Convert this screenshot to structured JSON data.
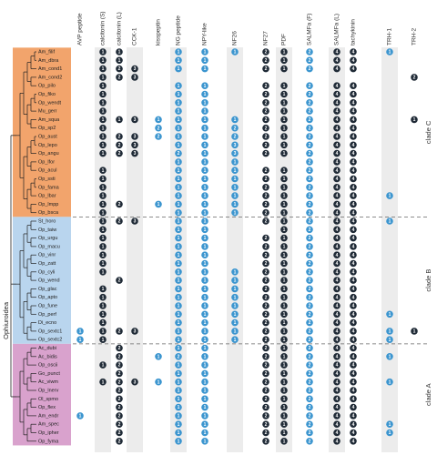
{
  "group_label": "Ophiuroidea",
  "columns": [
    {
      "label": "AVP peptide",
      "color": "#3b95cf"
    },
    {
      "label": "calcitonin (S)",
      "color": "#1f2a36"
    },
    {
      "label": "calcitonin (L)",
      "color": "#1f2a36"
    },
    {
      "label": "CCK-1",
      "color": "#1f2a36"
    },
    {
      "label": "kisspeptin",
      "color": "#3b95cf"
    },
    {
      "label": "NG peptide",
      "color": "#3b95cf"
    },
    {
      "label": "NPY-like",
      "color": "#3b95cf"
    },
    {
      "label": "NF26",
      "color": "#3b95cf"
    },
    {
      "label": "NF27",
      "color": "#1f2a36"
    },
    {
      "label": "PDF",
      "color": "#1f2a36"
    },
    {
      "label": "SALMFa (F)",
      "color": "#3b95cf"
    },
    {
      "label": "SALMFa (L)",
      "color": "#1f2a36"
    },
    {
      "label": "tachykinin",
      "color": "#1f2a36"
    },
    {
      "label": "TRH-1",
      "color": "#3b95cf"
    },
    {
      "label": "TRH-2",
      "color": "#1f2a36"
    }
  ],
  "clades": [
    {
      "label": "clade C",
      "color": "#f2a46c",
      "rows": [
        {
          "species": "Am_filif",
          "cells": [
            null,
            1,
            1,
            null,
            null,
            1,
            1,
            1,
            2,
            1,
            2,
            4,
            4,
            1,
            null
          ]
        },
        {
          "species": "Am_dbra",
          "cells": [
            null,
            1,
            1,
            null,
            null,
            1,
            1,
            null,
            2,
            1,
            2,
            4,
            4,
            null,
            null
          ]
        },
        {
          "species": "Am_cond1",
          "cells": [
            null,
            1,
            2,
            3,
            null,
            1,
            1,
            null,
            2,
            1,
            2,
            4,
            4,
            null,
            null
          ]
        },
        {
          "species": "Am_cond2",
          "cells": [
            null,
            1,
            2,
            3,
            null,
            null,
            null,
            null,
            null,
            null,
            null,
            null,
            null,
            null,
            2
          ]
        },
        {
          "species": "Op_pilo",
          "cells": [
            null,
            1,
            null,
            null,
            null,
            1,
            1,
            null,
            2,
            1,
            2,
            4,
            4,
            null,
            null
          ]
        },
        {
          "species": "Op_fiko",
          "cells": [
            null,
            1,
            null,
            null,
            null,
            1,
            1,
            null,
            2,
            1,
            2,
            4,
            4,
            null,
            null
          ]
        },
        {
          "species": "Op_wendt",
          "cells": [
            null,
            1,
            null,
            null,
            null,
            1,
            1,
            null,
            2,
            1,
            2,
            4,
            4,
            null,
            null
          ]
        },
        {
          "species": "Mu_gerr",
          "cells": [
            null,
            1,
            null,
            null,
            null,
            1,
            1,
            null,
            2,
            1,
            2,
            4,
            4,
            null,
            null
          ]
        },
        {
          "species": "Am_squa",
          "cells": [
            null,
            1,
            1,
            3,
            1,
            1,
            1,
            1,
            2,
            1,
            2,
            4,
            4,
            null,
            1
          ]
        },
        {
          "species": "Op_sp2",
          "cells": [
            null,
            1,
            null,
            null,
            2,
            1,
            1,
            2,
            2,
            1,
            2,
            4,
            4,
            null,
            null
          ]
        },
        {
          "species": "Op_aust",
          "cells": [
            null,
            1,
            2,
            3,
            2,
            1,
            1,
            2,
            2,
            1,
            2,
            4,
            4,
            null,
            null
          ]
        },
        {
          "species": "Op_lepo",
          "cells": [
            null,
            1,
            2,
            3,
            null,
            1,
            1,
            3,
            2,
            1,
            2,
            4,
            4,
            null,
            null
          ]
        },
        {
          "species": "Op_angu",
          "cells": [
            null,
            1,
            2,
            3,
            null,
            2,
            1,
            3,
            2,
            1,
            2,
            4,
            4,
            null,
            null
          ]
        },
        {
          "species": "Op_lfor",
          "cells": [
            null,
            null,
            null,
            null,
            null,
            1,
            1,
            1,
            null,
            null,
            2,
            4,
            4,
            null,
            null
          ]
        },
        {
          "species": "Op_acul",
          "cells": [
            null,
            1,
            null,
            null,
            null,
            1,
            1,
            1,
            2,
            1,
            2,
            4,
            4,
            null,
            null
          ]
        },
        {
          "species": "Op_ssti",
          "cells": [
            null,
            1,
            null,
            null,
            null,
            1,
            1,
            1,
            2,
            1,
            2,
            4,
            4,
            null,
            null
          ]
        },
        {
          "species": "Op_fama",
          "cells": [
            null,
            1,
            null,
            null,
            null,
            1,
            1,
            1,
            2,
            1,
            2,
            4,
            4,
            null,
            null
          ]
        },
        {
          "species": "Op_lbar",
          "cells": [
            null,
            1,
            null,
            null,
            null,
            1,
            1,
            1,
            2,
            1,
            2,
            4,
            4,
            1,
            null
          ]
        },
        {
          "species": "Op_lmpp",
          "cells": [
            null,
            1,
            2,
            null,
            1,
            1,
            1,
            1,
            2,
            1,
            2,
            4,
            4,
            null,
            null
          ]
        },
        {
          "species": "Op_bsca",
          "cells": [
            null,
            1,
            null,
            null,
            null,
            1,
            1,
            1,
            2,
            1,
            2,
            4,
            4,
            null,
            null
          ]
        }
      ]
    },
    {
      "label": "clade B",
      "color": "#b9d5ee",
      "rows": [
        {
          "species": "St_horo",
          "cells": [
            null,
            1,
            2,
            3,
            null,
            1,
            1,
            null,
            2,
            1,
            2,
            4,
            4,
            1,
            null
          ]
        },
        {
          "species": "Op_taiw",
          "cells": [
            null,
            1,
            null,
            null,
            null,
            1,
            1,
            null,
            null,
            1,
            2,
            4,
            4,
            null,
            null
          ]
        },
        {
          "species": "Op_urgu",
          "cells": [
            null,
            1,
            null,
            null,
            null,
            1,
            1,
            null,
            2,
            1,
            2,
            4,
            4,
            null,
            null
          ]
        },
        {
          "species": "Op_macu",
          "cells": [
            null,
            1,
            null,
            null,
            null,
            1,
            1,
            null,
            2,
            1,
            2,
            4,
            4,
            null,
            null
          ]
        },
        {
          "species": "Op_vinr",
          "cells": [
            null,
            1,
            null,
            null,
            null,
            1,
            1,
            null,
            2,
            1,
            2,
            4,
            4,
            null,
            null
          ]
        },
        {
          "species": "Op_zatt",
          "cells": [
            null,
            1,
            null,
            null,
            null,
            1,
            1,
            null,
            2,
            1,
            2,
            4,
            4,
            null,
            null
          ]
        },
        {
          "species": "Op_cyli",
          "cells": [
            null,
            1,
            null,
            null,
            null,
            1,
            1,
            1,
            2,
            1,
            2,
            4,
            4,
            null,
            null
          ]
        },
        {
          "species": "Op_wend",
          "cells": [
            null,
            null,
            2,
            null,
            null,
            1,
            1,
            1,
            2,
            1,
            2,
            4,
            4,
            null,
            null
          ]
        },
        {
          "species": "Op_glac",
          "cells": [
            null,
            1,
            null,
            null,
            null,
            1,
            1,
            1,
            2,
            1,
            2,
            4,
            4,
            null,
            null
          ]
        },
        {
          "species": "Op_apto",
          "cells": [
            null,
            1,
            null,
            null,
            null,
            1,
            1,
            1,
            2,
            1,
            2,
            4,
            4,
            null,
            null
          ]
        },
        {
          "species": "Op_fune",
          "cells": [
            null,
            1,
            null,
            null,
            null,
            1,
            1,
            1,
            2,
            1,
            2,
            4,
            4,
            null,
            null
          ]
        },
        {
          "species": "Op_perf",
          "cells": [
            null,
            1,
            null,
            null,
            null,
            1,
            1,
            1,
            2,
            1,
            2,
            4,
            4,
            1,
            null
          ]
        },
        {
          "species": "Di_ecno",
          "cells": [
            null,
            1,
            null,
            null,
            null,
            1,
            1,
            1,
            2,
            1,
            2,
            4,
            4,
            null,
            null
          ]
        },
        {
          "species": "Op_sextc1",
          "cells": [
            1,
            1,
            2,
            3,
            null,
            1,
            1,
            1,
            2,
            1,
            2,
            4,
            4,
            1,
            1
          ]
        },
        {
          "species": "Op_sextc2",
          "cells": [
            1,
            1,
            null,
            null,
            null,
            1,
            1,
            1,
            2,
            1,
            2,
            4,
            4,
            1,
            null
          ]
        }
      ]
    },
    {
      "label": "clade A",
      "color": "#d9a2cd",
      "rows": [
        {
          "species": "Ac_dubi",
          "cells": [
            null,
            null,
            2,
            null,
            null,
            1,
            1,
            null,
            2,
            1,
            2,
            4,
            4,
            null,
            null
          ]
        },
        {
          "species": "Ac_bidis",
          "cells": [
            null,
            null,
            2,
            null,
            1,
            2,
            1,
            null,
            2,
            1,
            2,
            4,
            4,
            1,
            null
          ]
        },
        {
          "species": "Op_oscii",
          "cells": [
            null,
            1,
            2,
            null,
            null,
            1,
            1,
            null,
            2,
            1,
            2,
            4,
            4,
            null,
            null
          ]
        },
        {
          "species": "Go_punct",
          "cells": [
            null,
            null,
            2,
            null,
            null,
            1,
            1,
            null,
            2,
            1,
            2,
            4,
            4,
            null,
            null
          ]
        },
        {
          "species": "Ac_viwm",
          "cells": [
            null,
            1,
            2,
            3,
            1,
            1,
            1,
            null,
            2,
            1,
            2,
            4,
            4,
            1,
            null
          ]
        },
        {
          "species": "Op_lnerv",
          "cells": [
            null,
            null,
            2,
            null,
            null,
            1,
            1,
            null,
            2,
            1,
            2,
            4,
            4,
            null,
            null
          ]
        },
        {
          "species": "Ol_spmo",
          "cells": [
            null,
            null,
            2,
            null,
            null,
            1,
            1,
            null,
            2,
            1,
            2,
            4,
            4,
            null,
            null
          ]
        },
        {
          "species": "Op_flex",
          "cells": [
            null,
            null,
            2,
            null,
            null,
            1,
            1,
            null,
            2,
            1,
            2,
            4,
            4,
            null,
            null
          ]
        },
        {
          "species": "Am_endr",
          "cells": [
            1,
            null,
            2,
            null,
            null,
            1,
            1,
            null,
            2,
            1,
            2,
            4,
            4,
            null,
            null
          ]
        },
        {
          "species": "Am_spec",
          "cells": [
            null,
            null,
            2,
            null,
            null,
            1,
            1,
            null,
            2,
            1,
            2,
            4,
            4,
            1,
            null
          ]
        },
        {
          "species": "Op_ipher",
          "cells": [
            null,
            null,
            2,
            null,
            null,
            1,
            1,
            null,
            2,
            1,
            2,
            4,
            4,
            1,
            null
          ]
        },
        {
          "species": "Op_fyma",
          "cells": [
            null,
            null,
            2,
            null,
            null,
            1,
            1,
            null,
            2,
            1,
            2,
            4,
            4,
            null,
            null
          ]
        }
      ]
    }
  ]
}
